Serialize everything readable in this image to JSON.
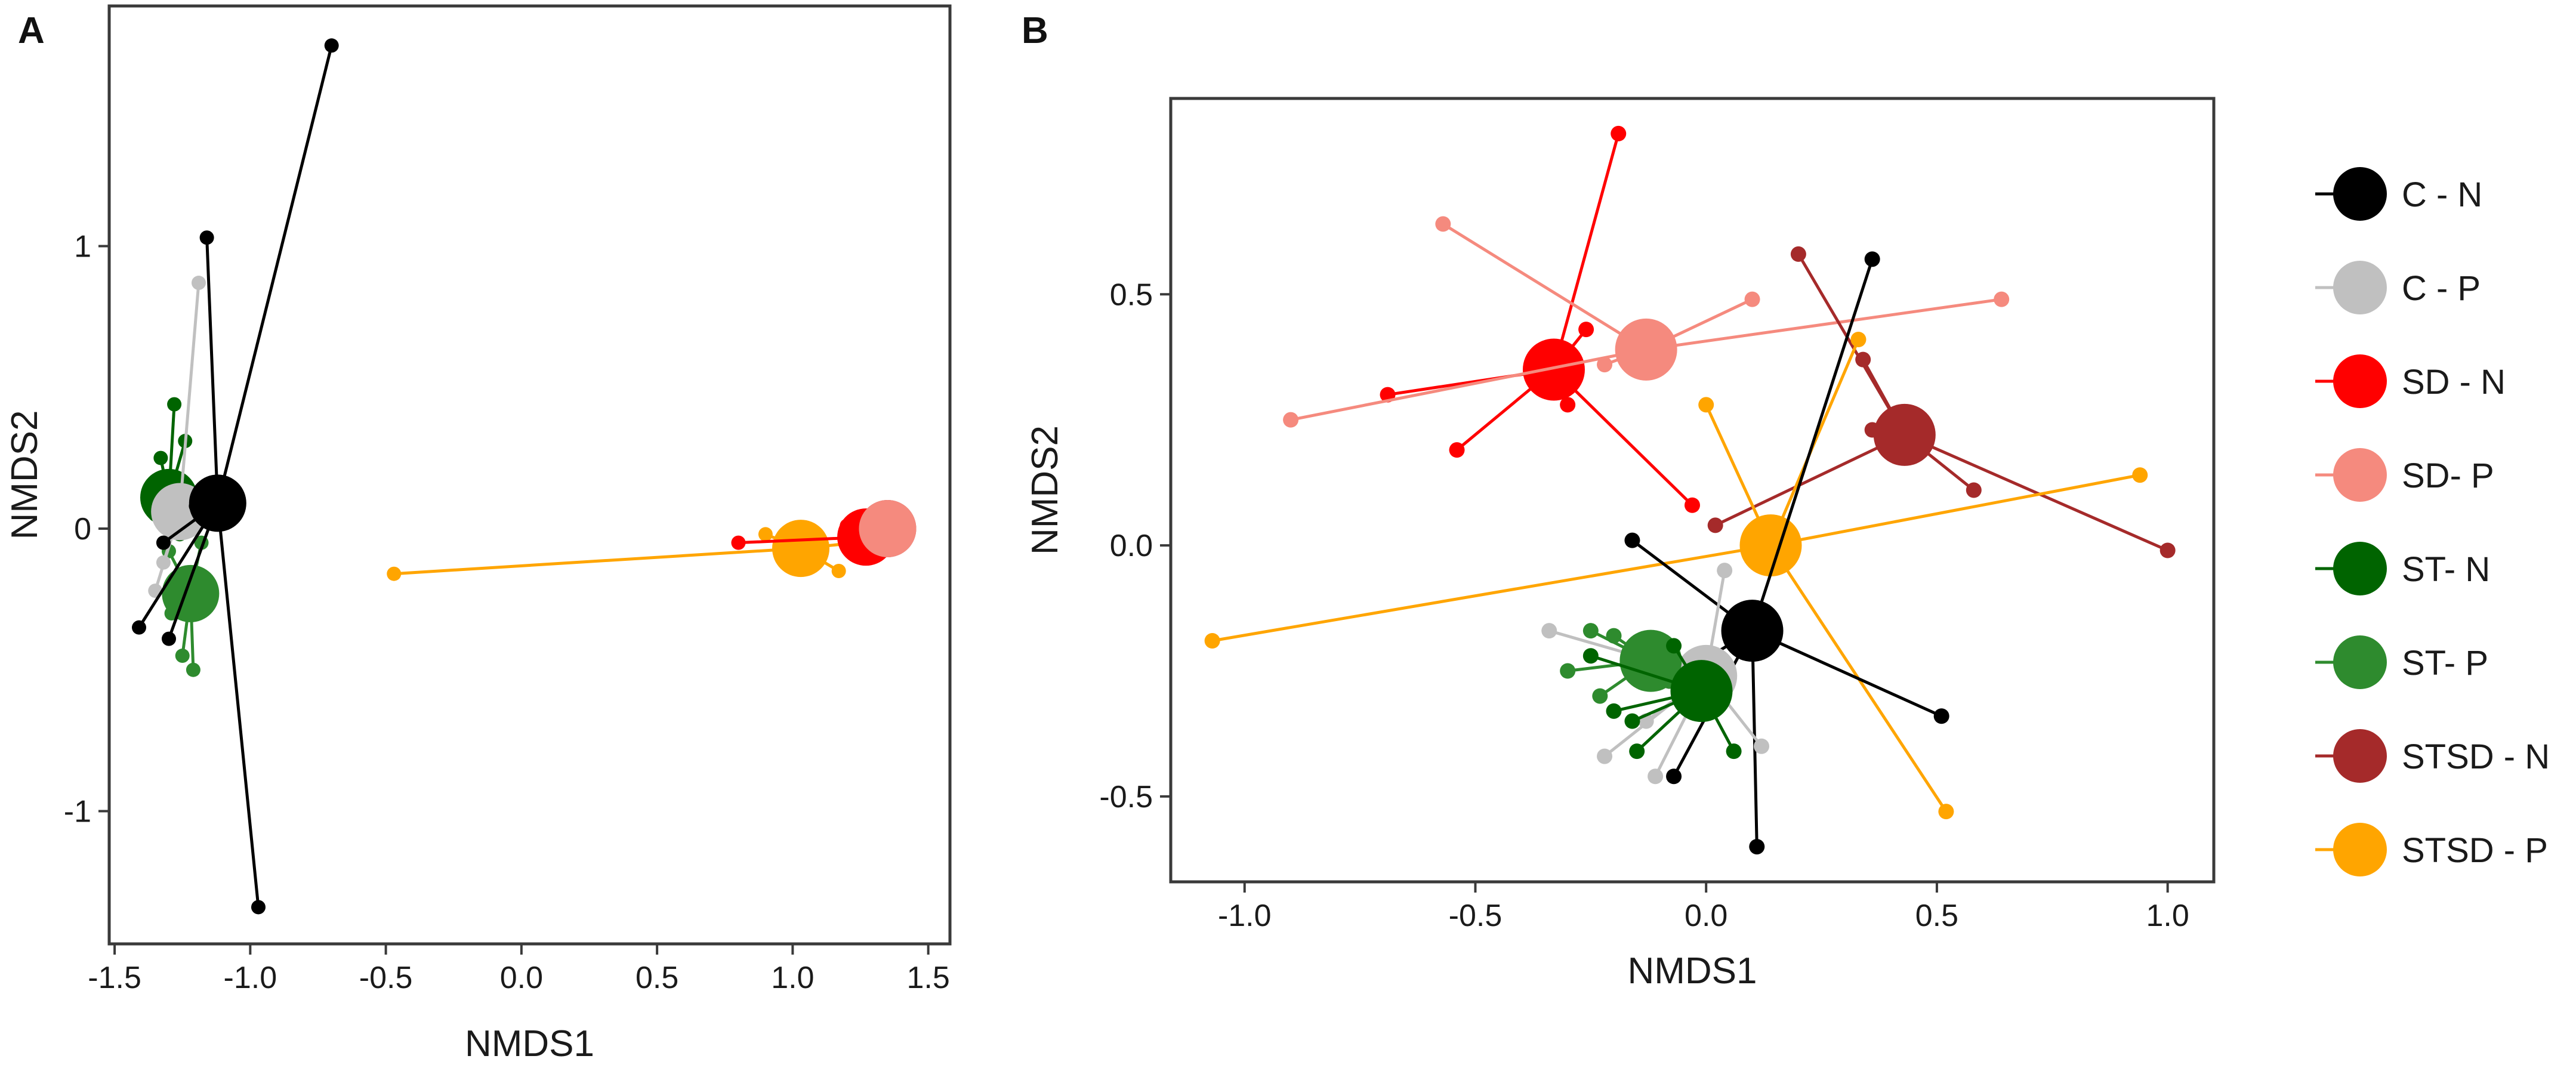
{
  "chart_data": [
    {
      "panel": "A",
      "type": "scatter",
      "subtype": "ordination-spider-plot",
      "xlabel": "NMDS1",
      "ylabel": "NMDS2",
      "xlim": [
        -1.52,
        1.58
      ],
      "ylim": [
        -1.47,
        1.85
      ],
      "xticks": [
        -1.5,
        -1.0,
        -0.5,
        0.0,
        0.5,
        1.0,
        1.5
      ],
      "xtick_labels": [
        "-1.5",
        "-1.0",
        "-0.5",
        "0.0",
        "0.5",
        "1.0",
        "1.5"
      ],
      "yticks": [
        1,
        0,
        -1
      ],
      "ytick_labels": [
        "1",
        "0",
        "-1"
      ],
      "series": [
        {
          "name": "ST- P",
          "centroid": [
            -1.22,
            -0.23
          ],
          "points": [
            [
              -1.3,
              -0.08
            ],
            [
              -1.18,
              -0.05
            ],
            [
              -1.25,
              -0.45
            ],
            [
              -1.21,
              -0.5
            ],
            [
              -1.29,
              -0.3
            ],
            [
              -1.17,
              -0.18
            ]
          ]
        },
        {
          "name": "ST- N",
          "centroid": [
            -1.3,
            0.11
          ],
          "points": [
            [
              -1.28,
              0.44
            ],
            [
              -1.33,
              0.25
            ],
            [
              -1.24,
              0.31
            ],
            [
              -1.35,
              0.05
            ],
            [
              -1.26,
              -0.02
            ],
            [
              -1.32,
              0.18
            ]
          ]
        },
        {
          "name": "C - P",
          "centroid": [
            -1.26,
            0.06
          ],
          "points": [
            [
              -1.19,
              0.87
            ],
            [
              -1.32,
              -0.12
            ],
            [
              -1.35,
              -0.22
            ],
            [
              -1.22,
              0.0
            ],
            [
              -1.29,
              0.12
            ]
          ]
        },
        {
          "name": "C - N",
          "centroid": [
            -1.12,
            0.09
          ],
          "points": [
            [
              -0.7,
              1.71
            ],
            [
              -1.16,
              1.03
            ],
            [
              -0.97,
              -1.34
            ],
            [
              -1.41,
              -0.35
            ],
            [
              -1.32,
              -0.05
            ],
            [
              -1.3,
              -0.39
            ],
            [
              -1.2,
              0.08
            ]
          ]
        },
        {
          "name": "STSD - P",
          "centroid": [
            1.03,
            -0.07
          ],
          "points": [
            [
              -0.47,
              -0.16
            ],
            [
              1.17,
              -0.15
            ],
            [
              1.34,
              -0.04
            ],
            [
              0.9,
              -0.02
            ]
          ]
        },
        {
          "name": "SD - N",
          "centroid": [
            1.27,
            -0.03
          ],
          "points": [
            [
              0.8,
              -0.05
            ],
            [
              1.2,
              0.01
            ],
            [
              1.31,
              0.02
            ]
          ]
        },
        {
          "name": "STSD - N",
          "centroid": [
            1.35,
            0.0
          ],
          "points": [
            [
              1.3,
              0.02
            ],
            [
              1.38,
              -0.02
            ],
            [
              1.33,
              0.05
            ]
          ]
        },
        {
          "name": "SD- P",
          "centroid": [
            1.35,
            0.0
          ],
          "points": [
            [
              1.3,
              0.04
            ],
            [
              1.37,
              -0.03
            ]
          ]
        }
      ]
    },
    {
      "panel": "B",
      "type": "scatter",
      "subtype": "ordination-spider-plot",
      "xlabel": "NMDS1",
      "ylabel": "NMDS2",
      "xlim": [
        -1.16,
        1.1
      ],
      "ylim": [
        -0.67,
        0.89
      ],
      "xticks": [
        -1.0,
        -0.5,
        0.0,
        0.5,
        1.0
      ],
      "xtick_labels": [
        "-1.0",
        "-0.5",
        "0.0",
        "0.5",
        "1.0"
      ],
      "yticks": [
        0.5,
        0.0,
        -0.5
      ],
      "ytick_labels": [
        "0.5",
        "0.0",
        "-0.5"
      ],
      "series": [
        {
          "name": "SD - N",
          "centroid": [
            -0.33,
            0.35
          ],
          "points": [
            [
              -0.19,
              0.82
            ],
            [
              -0.26,
              0.43
            ],
            [
              -0.69,
              0.3
            ],
            [
              -0.54,
              0.19
            ],
            [
              -0.03,
              0.08
            ],
            [
              -0.3,
              0.28
            ]
          ]
        },
        {
          "name": "SD- P",
          "centroid": [
            -0.13,
            0.39
          ],
          "points": [
            [
              -0.57,
              0.64
            ],
            [
              -0.9,
              0.25
            ],
            [
              0.64,
              0.49
            ],
            [
              0.1,
              0.49
            ],
            [
              -0.22,
              0.36
            ]
          ]
        },
        {
          "name": "STSD - N",
          "centroid": [
            0.43,
            0.22
          ],
          "points": [
            [
              0.2,
              0.58
            ],
            [
              1.0,
              -0.01
            ],
            [
              0.58,
              0.11
            ],
            [
              0.02,
              0.04
            ],
            [
              0.34,
              0.37
            ],
            [
              0.36,
              0.23
            ]
          ]
        },
        {
          "name": "STSD - P",
          "centroid": [
            0.14,
            0.0
          ],
          "points": [
            [
              -1.07,
              -0.19
            ],
            [
              0.94,
              0.14
            ],
            [
              0.52,
              -0.53
            ],
            [
              0.0,
              0.28
            ],
            [
              0.33,
              0.41
            ]
          ]
        },
        {
          "name": "C - N",
          "centroid": [
            0.1,
            -0.17
          ],
          "points": [
            [
              0.36,
              0.57
            ],
            [
              -0.16,
              0.01
            ],
            [
              0.51,
              -0.34
            ],
            [
              0.11,
              -0.6
            ],
            [
              -0.07,
              -0.46
            ],
            [
              -0.08,
              -0.27
            ]
          ]
        },
        {
          "name": "C - P",
          "centroid": [
            0.0,
            -0.26
          ],
          "points": [
            [
              -0.34,
              -0.17
            ],
            [
              -0.22,
              -0.42
            ],
            [
              -0.11,
              -0.46
            ],
            [
              0.12,
              -0.4
            ],
            [
              0.04,
              -0.05
            ],
            [
              -0.13,
              -0.35
            ]
          ]
        },
        {
          "name": "ST- P",
          "centroid": [
            -0.12,
            -0.23
          ],
          "points": [
            [
              -0.25,
              -0.17
            ],
            [
              -0.23,
              -0.3
            ],
            [
              -0.3,
              -0.25
            ],
            [
              -0.08,
              -0.27
            ],
            [
              -0.2,
              -0.18
            ]
          ]
        },
        {
          "name": "ST- N",
          "centroid": [
            -0.01,
            -0.29
          ],
          "points": [
            [
              -0.25,
              -0.22
            ],
            [
              -0.16,
              -0.35
            ],
            [
              -0.15,
              -0.41
            ],
            [
              0.06,
              -0.41
            ],
            [
              -0.07,
              -0.2
            ],
            [
              -0.2,
              -0.33
            ]
          ]
        }
      ]
    }
  ],
  "panels": {
    "a": {
      "letter": "A"
    },
    "b": {
      "letter": "B"
    }
  },
  "legend": {
    "items": [
      {
        "label": "C - N",
        "color": "#000000"
      },
      {
        "label": "C - P",
        "color": "#c0c0c0"
      },
      {
        "label": "SD - N",
        "color": "#ff0000"
      },
      {
        "label": "SD- P",
        "color": "#f58a7e"
      },
      {
        "label": "ST- N",
        "color": "#006400"
      },
      {
        "label": "ST- P",
        "color": "#2e8b2e"
      },
      {
        "label": "STSD - N",
        "color": "#a52a2a"
      },
      {
        "label": "STSD - P",
        "color": "#ffa500"
      }
    ]
  }
}
